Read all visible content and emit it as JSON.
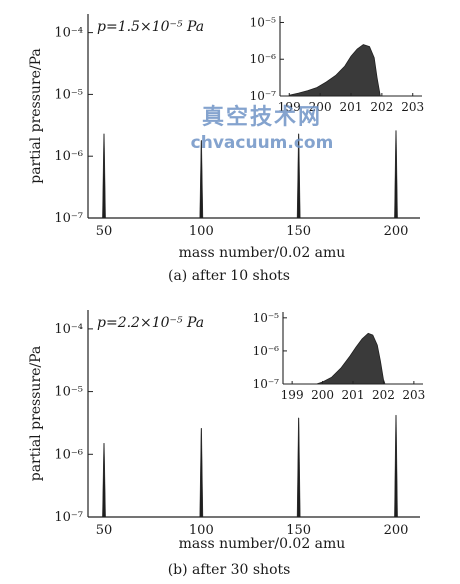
{
  "chart_data": [
    {
      "type": "line",
      "caption": "(a) after 10 shots",
      "pressure_label": "p=1.5×10⁻⁵ Pa",
      "xlabel": "mass number/0.02 amu",
      "ylabel": "partial pressure/Pa",
      "x_ticks": [
        "50",
        "100",
        "150",
        "200"
      ],
      "y_ticks": [
        "10⁻⁷",
        "10⁻⁶",
        "10⁻⁵",
        "10⁻⁴"
      ],
      "ylim": [
        1e-07,
        0.0002
      ],
      "log_y": true,
      "peaks": [
        {
          "x": 50,
          "y": 2.3e-06
        },
        {
          "x": 100,
          "y": 1.8e-06
        },
        {
          "x": 150,
          "y": 2.3e-06
        },
        {
          "x": 200,
          "y": 2.6e-06
        }
      ],
      "inset": {
        "x_ticks": [
          "199",
          "200",
          "201",
          "202",
          "203"
        ],
        "y_ticks": [
          "10⁻⁷",
          "10⁻⁶",
          "10⁻⁵"
        ],
        "xlim": [
          198.7,
          203.3
        ],
        "ylim": [
          1e-07,
          1.5e-05
        ],
        "profile": [
          [
            199.0,
            1.05e-07
          ],
          [
            199.3,
            1.2e-07
          ],
          [
            199.6,
            1.4e-07
          ],
          [
            199.9,
            1.7e-07
          ],
          [
            200.2,
            2.4e-07
          ],
          [
            200.5,
            3.6e-07
          ],
          [
            200.8,
            6.5e-07
          ],
          [
            201.0,
            1.2e-06
          ],
          [
            201.2,
            1.9e-06
          ],
          [
            201.4,
            2.5e-06
          ],
          [
            201.6,
            2.2e-06
          ],
          [
            201.75,
            1.1e-06
          ],
          [
            201.85,
            3e-07
          ],
          [
            201.95,
            1e-07
          ]
        ]
      }
    },
    {
      "type": "line",
      "caption": "(b) after 30 shots",
      "pressure_label": "p=2.2×10⁻⁵ Pa",
      "xlabel": "mass number/0.02 amu",
      "ylabel": "partial pressure/Pa",
      "x_ticks": [
        "50",
        "100",
        "150",
        "200"
      ],
      "y_ticks": [
        "10⁻⁷",
        "10⁻⁶",
        "10⁻⁵",
        "10⁻⁴"
      ],
      "ylim": [
        1e-07,
        0.0002
      ],
      "log_y": true,
      "peaks": [
        {
          "x": 50,
          "y": 1.5e-06
        },
        {
          "x": 100,
          "y": 2.6e-06
        },
        {
          "x": 150,
          "y": 3.8e-06
        },
        {
          "x": 200,
          "y": 4.2e-06
        }
      ],
      "inset": {
        "x_ticks": [
          "199",
          "200",
          "201",
          "202",
          "203"
        ],
        "y_ticks": [
          "10⁻⁷",
          "10⁻⁶",
          "10⁻⁵"
        ],
        "xlim": [
          198.7,
          203.3
        ],
        "ylim": [
          1e-07,
          1.5e-05
        ],
        "profile": [
          [
            199.8,
            1e-07
          ],
          [
            200.0,
            1.15e-07
          ],
          [
            200.3,
            1.6e-07
          ],
          [
            200.6,
            3e-07
          ],
          [
            200.9,
            7e-07
          ],
          [
            201.1,
            1.3e-06
          ],
          [
            201.3,
            2.3e-06
          ],
          [
            201.5,
            3.4e-06
          ],
          [
            201.65,
            3e-06
          ],
          [
            201.8,
            1.5e-06
          ],
          [
            201.9,
            5e-07
          ],
          [
            202.0,
            1.4e-07
          ],
          [
            202.05,
            1e-07
          ]
        ]
      }
    }
  ],
  "watermark": {
    "line1": "真空技术网",
    "line2": "chvacuum.com"
  }
}
